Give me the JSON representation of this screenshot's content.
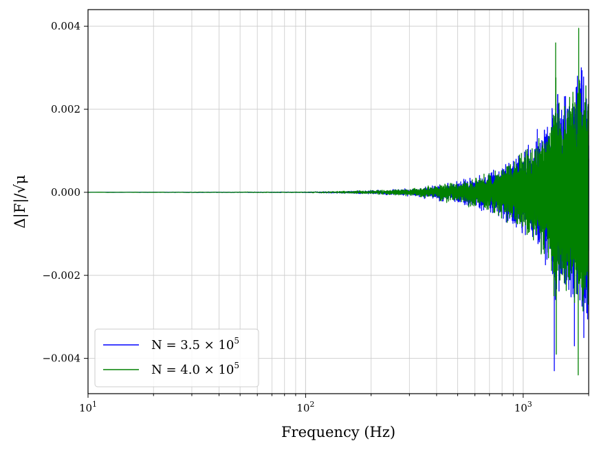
{
  "chart_data": {
    "type": "line",
    "title": "",
    "xlabel": "Frequency (Hz)",
    "ylabel": "Δ|F|/√μ",
    "x_scale": "log",
    "xlim": [
      10,
      2000
    ],
    "ylim": [
      -0.00485,
      0.0044
    ],
    "x_ticks": [
      {
        "value": 10,
        "base": "10",
        "exp": "1"
      },
      {
        "value": 100,
        "base": "10",
        "exp": "2"
      },
      {
        "value": 1000,
        "base": "10",
        "exp": "3"
      }
    ],
    "y_ticks": [
      {
        "value": 0.004,
        "label": "0.004"
      },
      {
        "value": 0.002,
        "label": "0.002"
      },
      {
        "value": 0.0,
        "label": "0.000"
      },
      {
        "value": -0.002,
        "label": "−0.002"
      },
      {
        "value": -0.004,
        "label": "−0.004"
      }
    ],
    "grid": true,
    "legend_position": "lower-left",
    "series": [
      {
        "label_parts": {
          "prefix": "N = 3.5 × 10",
          "exp": "5"
        },
        "color": "#0000ff",
        "envelope": {
          "x": [
            10,
            100,
            150,
            200,
            300,
            400,
            500,
            600,
            700,
            800,
            900,
            1000,
            1100,
            1200,
            1300,
            1400,
            1500,
            1600,
            1700,
            1800,
            1900,
            2000
          ],
          "amp": [
            3e-06,
            1e-05,
            3e-05,
            5e-05,
            0.0001,
            0.0002,
            0.0003,
            0.0004,
            0.00055,
            0.0007,
            0.0009,
            0.0011,
            0.0013,
            0.0015,
            0.0018,
            0.0027,
            0.0024,
            0.0026,
            0.0028,
            0.003,
            0.0031,
            0.003
          ]
        },
        "extrema": [
          {
            "x": 1390,
            "y": -0.0043
          },
          {
            "x": 1900,
            "y": -0.0035
          },
          {
            "x": 1850,
            "y": 0.003
          },
          {
            "x": 1720,
            "y": -0.0037
          }
        ]
      },
      {
        "label_parts": {
          "prefix": "N = 4.0 × 10",
          "exp": "5"
        },
        "color": "#008000",
        "envelope": {
          "x": [
            10,
            100,
            150,
            200,
            300,
            400,
            500,
            600,
            700,
            800,
            900,
            1000,
            1100,
            1200,
            1300,
            1400,
            1500,
            1600,
            1700,
            1800,
            1900,
            2000
          ],
          "amp": [
            3e-06,
            1e-05,
            3e-05,
            5e-05,
            0.0001,
            0.00018,
            0.00028,
            0.00038,
            0.0005,
            0.00065,
            0.00085,
            0.001,
            0.0012,
            0.0014,
            0.0017,
            0.0028,
            0.0022,
            0.0025,
            0.0027,
            0.0029,
            0.0031,
            0.003
          ]
        },
        "extrema": [
          {
            "x": 1410,
            "y": 0.0036
          },
          {
            "x": 1800,
            "y": 0.00395
          },
          {
            "x": 1790,
            "y": -0.0044
          },
          {
            "x": 1420,
            "y": -0.0039
          }
        ]
      }
    ]
  }
}
